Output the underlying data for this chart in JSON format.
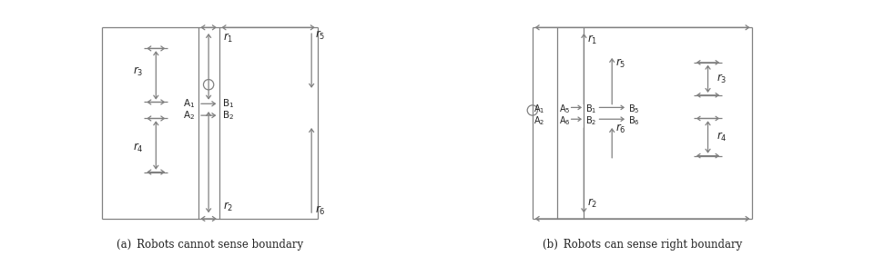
{
  "fig_width": 9.6,
  "fig_height": 2.82,
  "bg_color": "#ffffff",
  "lc": "#808080",
  "tc": "#222222",
  "caption_a": "(a) Robots cannot sense boundary",
  "caption_b": "(b) Robots can sense right boundary"
}
